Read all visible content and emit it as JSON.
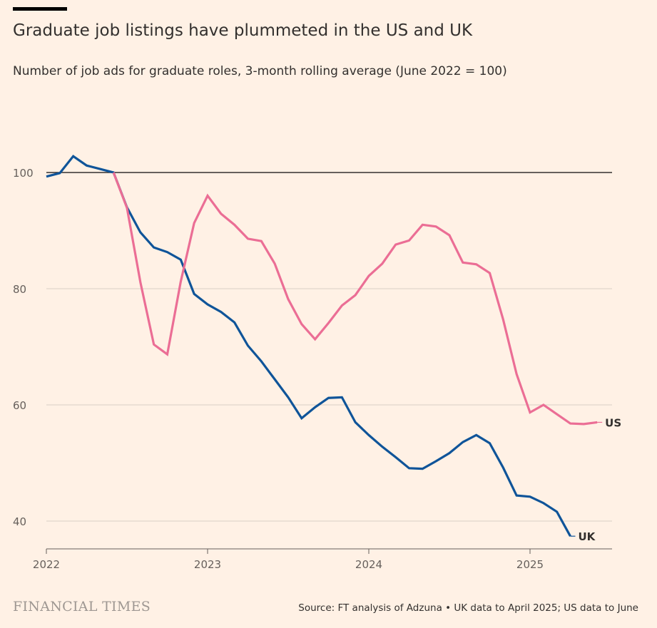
{
  "chart_data": {
    "type": "line",
    "title": "Graduate job listings have plummeted in the US and UK",
    "subtitle": "Number of job ads for graduate roles, 3-month rolling average (June 2022 = 100)",
    "xlabel": "",
    "ylabel": "",
    "x_ticks": [
      "2022",
      "2023",
      "2024",
      "2025"
    ],
    "y_ticks": [
      40,
      60,
      80,
      100
    ],
    "ylim": [
      35,
      110
    ],
    "xlim": [
      "2022-01",
      "2025-07"
    ],
    "reference_line": 100,
    "grid": true,
    "series": [
      {
        "name": "UK",
        "color": "#0F5499",
        "start": "2022-01",
        "values": [
          99.3,
          99.9,
          102.8,
          101.2,
          100.6,
          100,
          94,
          89.7,
          87.1,
          86.3,
          85,
          79.1,
          77.3,
          76,
          74.2,
          70.2,
          67.5,
          64.4,
          61.3,
          57.7,
          59.6,
          61.2,
          61.3,
          57,
          54.8,
          52.8,
          51,
          49.1,
          49,
          50.3,
          51.7,
          53.6,
          54.8,
          53.4,
          49.2,
          44.4,
          44.2,
          43.1,
          41.6,
          37.4
        ]
      },
      {
        "name": "US",
        "color": "#EB6E95",
        "start": "2022-06",
        "values": [
          100,
          93.9,
          81.1,
          70.4,
          68.7,
          81.2,
          91.3,
          96,
          92.9,
          91,
          88.6,
          88.2,
          84.3,
          78.2,
          73.9,
          71.3,
          74.1,
          77.1,
          78.9,
          82.2,
          84.3,
          87.6,
          88.3,
          91,
          90.7,
          89.2,
          84.5,
          84.2,
          82.7,
          74.7,
          65.3,
          58.7,
          60,
          58.4,
          56.8,
          56.7,
          57
        ]
      }
    ]
  },
  "footer": {
    "logo": "FINANCIAL TIMES",
    "source": "Source: FT analysis of Adzuna • UK data to April 2025; US data to June"
  }
}
